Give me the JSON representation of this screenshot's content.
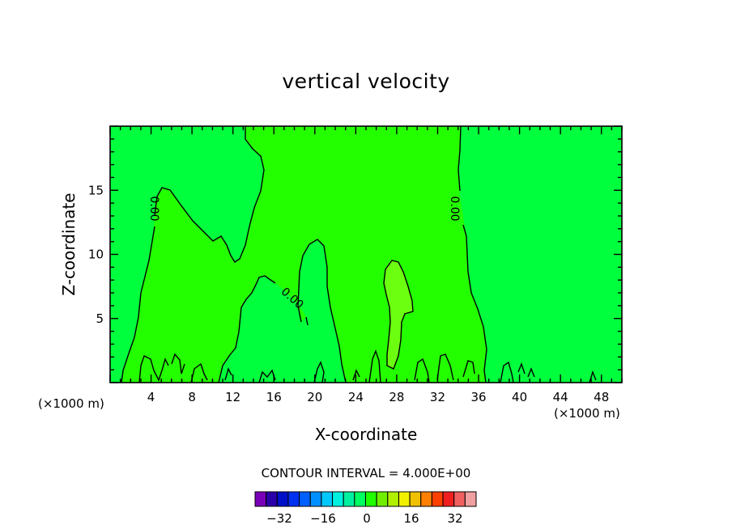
{
  "chart_data": {
    "type": "heatmap",
    "title": "vertical velocity",
    "xlabel": "X-coordinate",
    "ylabel": "Z-coordinate",
    "x_unit_label_left": "(×1000 m)",
    "x_unit_label_right": "(×1000 m)",
    "x_ticks": [
      "4",
      "8",
      "12",
      "16",
      "20",
      "24",
      "28",
      "32",
      "36",
      "40",
      "44",
      "48"
    ],
    "y_ticks": [
      "5",
      "10",
      "15"
    ],
    "xlim": [
      0,
      50
    ],
    "ylim": [
      0,
      20
    ],
    "contour_label": "0.00",
    "contour_interval_text": "CONTOUR INTERVAL = 4.000E+00",
    "colorbar": {
      "colors": [
        "#7a00b8",
        "#2a00a8",
        "#0010c8",
        "#0030f0",
        "#0060ff",
        "#0090ff",
        "#00c8ff",
        "#00f0e0",
        "#00f0a0",
        "#00ff60",
        "#20ff00",
        "#70f000",
        "#b0f000",
        "#f0f000",
        "#f0c000",
        "#ff8000",
        "#ff4000",
        "#f02020",
        "#f06060",
        "#f0a0a0"
      ],
      "tick_labels": [
        "−32",
        "−16",
        "0",
        "16",
        "32"
      ]
    },
    "fields": {
      "background": "#00ff3c",
      "positive_region": "#24ff00",
      "positive_peak": "#6cff10"
    }
  }
}
